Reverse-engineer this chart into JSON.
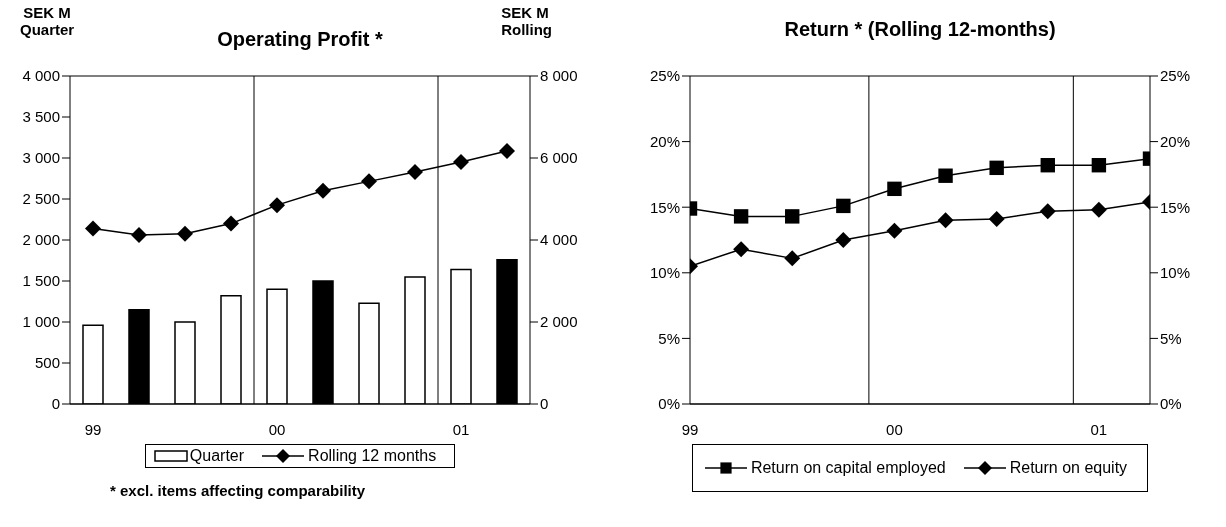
{
  "chart_data": [
    {
      "type": "bar",
      "title": "Operating Profit *",
      "ylabel": "SEK M\nQuarter",
      "y2label": "SEK M\nRolling",
      "categories": [
        "99",
        null,
        null,
        null,
        "00",
        null,
        null,
        null,
        "01",
        null
      ],
      "series": [
        {
          "name": "Quarter",
          "type": "bar",
          "color": "#ffffff",
          "colors": [
            "#ffffff",
            "#000000",
            "#ffffff",
            "#ffffff",
            "#ffffff",
            "#000000",
            "#ffffff",
            "#ffffff",
            "#ffffff",
            "#000000"
          ],
          "values": [
            960,
            1150,
            1000,
            1320,
            1400,
            1500,
            1230,
            1550,
            1640,
            1760
          ]
        },
        {
          "name": "Rolling 12 months",
          "type": "line",
          "axis": "y2",
          "color": "#000000",
          "marker": "diamond",
          "values": [
            4280,
            4120,
            4150,
            4400,
            4850,
            5200,
            5430,
            5660,
            5900,
            6170
          ]
        }
      ],
      "ylim": [
        0,
        4000
      ],
      "yticks": [
        0,
        500,
        {
          "value": 1000,
          "label": "1 000"
        },
        {
          "value": 1500,
          "label": "1 500"
        },
        {
          "value": 2000,
          "label": "2 000"
        },
        {
          "value": 2500,
          "label": "2 500"
        },
        {
          "value": 3000,
          "label": "3 000"
        },
        {
          "value": 3500,
          "label": "3 500"
        },
        {
          "value": 4000,
          "label": "4 000"
        }
      ],
      "y2lim": [
        0,
        8000
      ],
      "y2ticks": [
        0,
        {
          "value": 2000,
          "label": "2 000"
        },
        {
          "value": 4000,
          "label": "4 000"
        },
        {
          "value": 6000,
          "label": "6 000"
        },
        {
          "value": 8000,
          "label": "8 000"
        }
      ],
      "grid": true,
      "legend": "bottom",
      "annotations": [
        "* excl. items affecting comparability"
      ]
    },
    {
      "type": "line",
      "title": "Return * (Rolling 12-months)",
      "categories": [
        "99",
        null,
        null,
        null,
        "00",
        null,
        null,
        null,
        "01",
        null
      ],
      "series": [
        {
          "name": "Return on capital employed",
          "color": "#000000",
          "marker": "square",
          "values": [
            14.9,
            14.3,
            14.3,
            15.1,
            16.4,
            17.4,
            18.0,
            18.2,
            18.2,
            18.7
          ]
        },
        {
          "name": "Return on equity",
          "color": "#000000",
          "marker": "diamond",
          "values": [
            10.5,
            11.8,
            11.1,
            12.5,
            13.2,
            14.0,
            14.1,
            14.7,
            14.8,
            15.4
          ]
        }
      ],
      "ylim": [
        0,
        25
      ],
      "yticks": [
        {
          "value": 0,
          "label": "0%"
        },
        {
          "value": 5,
          "label": "5%"
        },
        {
          "value": 10,
          "label": "10%"
        },
        {
          "value": 15,
          "label": "15%"
        },
        {
          "value": 20,
          "label": "20%"
        },
        {
          "value": 25,
          "label": "25%"
        }
      ],
      "y2lim": [
        0,
        25
      ],
      "y2ticks": [
        {
          "value": 0,
          "label": "0%"
        },
        {
          "value": 5,
          "label": "5%"
        },
        {
          "value": 10,
          "label": "10%"
        },
        {
          "value": 15,
          "label": "15%"
        },
        {
          "value": 20,
          "label": "20%"
        },
        {
          "value": 25,
          "label": "25%"
        }
      ],
      "grid": true,
      "legend": "bottom"
    }
  ]
}
